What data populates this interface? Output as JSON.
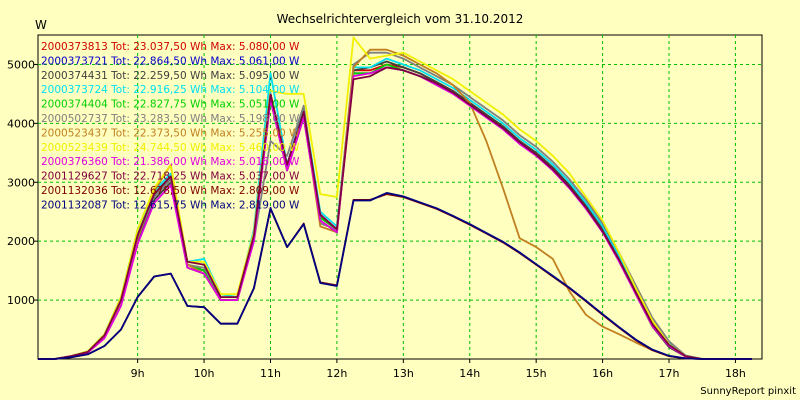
{
  "chart_data": {
    "type": "line",
    "title": "Wechselrichtervergleich vom 31.10.2012",
    "ylabel": "W",
    "footer": "SunnyReport pinxit",
    "x": [
      7.5,
      7.75,
      8.0,
      8.25,
      8.5,
      8.75,
      9.0,
      9.25,
      9.5,
      9.75,
      10.0,
      10.25,
      10.5,
      10.75,
      11.0,
      11.25,
      11.5,
      11.75,
      12.0,
      12.25,
      12.5,
      12.75,
      13.0,
      13.25,
      13.5,
      13.75,
      14.0,
      14.25,
      14.5,
      14.75,
      15.0,
      15.25,
      15.5,
      15.75,
      16.0,
      16.25,
      16.5,
      16.75,
      17.0,
      17.25,
      17.5,
      17.75,
      18.0,
      18.25
    ],
    "xlim": [
      7.5,
      18.4
    ],
    "ylim": [
      0,
      5500
    ],
    "xticks": [
      9,
      10,
      11,
      12,
      13,
      14,
      15,
      16,
      17,
      18
    ],
    "xtick_labels": [
      "9h",
      "10h",
      "11h",
      "12h",
      "13h",
      "14h",
      "15h",
      "16h",
      "17h",
      "18h"
    ],
    "yticks": [
      1000,
      2000,
      3000,
      4000,
      5000
    ],
    "ytick_labels": [
      "1000",
      "2000",
      "3000",
      "4000",
      "5000"
    ],
    "grid": true,
    "legend_position": "top-left",
    "series": [
      {
        "name": "2000373813",
        "legend": "2000373813 Tot: 23.037,50 Wh Max: 5.080,00 W",
        "color": "#d00000",
        "values": [
          0,
          0,
          50,
          120,
          400,
          1000,
          2100,
          2800,
          3100,
          1600,
          1500,
          1000,
          1000,
          2100,
          4500,
          3200,
          4200,
          2400,
          2200,
          4900,
          4900,
          5000,
          4950,
          4850,
          4700,
          4550,
          4350,
          4150,
          3950,
          3700,
          3500,
          3250,
          2950,
          2600,
          2200,
          1700,
          1150,
          600,
          250,
          50,
          0,
          0,
          0,
          0
        ]
      },
      {
        "name": "2000373721",
        "legend": "2000373721 Tot: 22.864,50 Wh Max: 5.061,00 W",
        "color": "#0000c8",
        "values": [
          0,
          0,
          50,
          120,
          400,
          1000,
          2100,
          2800,
          3100,
          1600,
          1500,
          1000,
          1000,
          2100,
          4500,
          3250,
          4150,
          2450,
          2200,
          4850,
          4850,
          4950,
          4900,
          4800,
          4680,
          4520,
          4320,
          4120,
          3920,
          3680,
          3470,
          3220,
          2920,
          2570,
          2170,
          1680,
          1130,
          590,
          240,
          50,
          0,
          0,
          0,
          0
        ]
      },
      {
        "name": "2000374431",
        "legend": "2000374431 Tot: 22.259,50 Wh Max: 5.095,00 W",
        "color": "#404040",
        "values": [
          0,
          0,
          50,
          120,
          400,
          950,
          2000,
          2700,
          3000,
          1550,
          1450,
          1000,
          1000,
          2050,
          4400,
          3200,
          4100,
          2350,
          2150,
          4900,
          4950,
          5050,
          4950,
          4850,
          4700,
          4550,
          4350,
          4150,
          3950,
          3700,
          3500,
          3250,
          2950,
          2600,
          2200,
          1700,
          1100,
          550,
          200,
          40,
          0,
          0,
          0,
          0
        ]
      },
      {
        "name": "2000373724",
        "legend": "2000373724 Tot: 22.916,25 Wh Max: 5.104,00 W",
        "color": "#00e0f0",
        "values": [
          0,
          0,
          50,
          130,
          420,
          1050,
          2200,
          2850,
          3150,
          1650,
          1700,
          1100,
          1050,
          2200,
          4850,
          3300,
          4250,
          2500,
          2250,
          4950,
          4950,
          5100,
          5000,
          4900,
          4750,
          4600,
          4400,
          4200,
          4000,
          3750,
          3550,
          3300,
          3000,
          2650,
          2250,
          1750,
          1200,
          650,
          280,
          60,
          0,
          0,
          0,
          0
        ]
      },
      {
        "name": "2000374404",
        "legend": "2000374404 Tot: 22.827,75 Wh Max: 5.051,00 W",
        "color": "#00d000",
        "values": [
          0,
          0,
          50,
          120,
          400,
          1000,
          2100,
          2800,
          3100,
          1600,
          1500,
          1000,
          1000,
          2100,
          4500,
          3200,
          4200,
          2400,
          2200,
          4850,
          4850,
          5000,
          4900,
          4800,
          4680,
          4520,
          4320,
          4120,
          3920,
          3680,
          3470,
          3220,
          2920,
          2570,
          2170,
          1680,
          1130,
          590,
          240,
          50,
          0,
          0,
          0,
          0
        ]
      },
      {
        "name": "2000502737",
        "legend": "2000502737 Tot: 23.283,50 Wh Max: 5.198,00 W",
        "color": "#808080",
        "values": [
          0,
          0,
          50,
          120,
          380,
          950,
          2050,
          2750,
          3050,
          1600,
          1550,
          1050,
          1050,
          2000,
          3700,
          3450,
          4300,
          2300,
          2200,
          5000,
          5200,
          5200,
          5100,
          4950,
          4800,
          4650,
          4450,
          4250,
          4050,
          3800,
          3600,
          3350,
          3050,
          2700,
          2300,
          1800,
          1250,
          700,
          300,
          60,
          0,
          0,
          0,
          0
        ]
      },
      {
        "name": "2000523437",
        "legend": "2000523437 Tot: 22.373,50 Wh Max: 5.255,00 W",
        "color": "#c08020",
        "values": [
          0,
          0,
          50,
          120,
          380,
          950,
          2050,
          2850,
          3300,
          1600,
          1450,
          1000,
          1000,
          2050,
          4450,
          3200,
          4150,
          2250,
          2150,
          4950,
          5250,
          5250,
          5150,
          5000,
          4850,
          4650,
          4350,
          3700,
          2900,
          2050,
          1900,
          1700,
          1150,
          750,
          550,
          420,
          280,
          150,
          50,
          10,
          0,
          0,
          0,
          0
        ]
      },
      {
        "name": "2000523439",
        "legend": "2000523439 Tot: 24.744,50 Wh Max: 5.460,00 W",
        "color": "#f0f000",
        "values": [
          0,
          0,
          50,
          130,
          420,
          1050,
          2200,
          2900,
          3300,
          1650,
          1650,
          1100,
          1100,
          2150,
          4550,
          4500,
          4500,
          2800,
          2750,
          5460,
          5100,
          5150,
          5200,
          5050,
          4900,
          4750,
          4550,
          4350,
          4150,
          3900,
          3700,
          3450,
          3150,
          2750,
          2350,
          1800,
          1200,
          650,
          250,
          50,
          0,
          0,
          0,
          0
        ]
      },
      {
        "name": "2000376360",
        "legend": "2000376360 Tot: 21.386,00 Wh Max: 5.016,00 W",
        "color": "#e000e0",
        "values": [
          0,
          0,
          50,
          110,
          350,
          900,
          1950,
          2650,
          2950,
          1550,
          1450,
          1000,
          1000,
          2000,
          4400,
          3200,
          4100,
          2350,
          2150,
          4800,
          4850,
          4950,
          4900,
          4800,
          4650,
          4500,
          4300,
          4100,
          3900,
          3650,
          3450,
          3200,
          2900,
          2550,
          2150,
          1650,
          1100,
          560,
          220,
          40,
          0,
          0,
          0,
          0
        ]
      },
      {
        "name": "2001129627",
        "legend": "2001129627 Tot: 22.718,25 Wh Max: 5.037,00 W",
        "color": "#800040",
        "values": [
          0,
          0,
          50,
          120,
          400,
          1000,
          2100,
          2800,
          3100,
          1650,
          1600,
          1050,
          1050,
          2100,
          4500,
          3300,
          4200,
          2450,
          2200,
          4750,
          4800,
          4950,
          4900,
          4800,
          4680,
          4520,
          4320,
          4120,
          3920,
          3680,
          3470,
          3220,
          2920,
          2570,
          2170,
          1680,
          1130,
          590,
          240,
          50,
          0,
          0,
          0,
          0
        ]
      },
      {
        "name": "2001132036",
        "legend": "2001132036 Tot: 12.678,50 Wh Max: 2.809,00 W",
        "color": "#800000",
        "values": [
          0,
          0,
          30,
          80,
          220,
          500,
          1050,
          1400,
          1450,
          900,
          880,
          600,
          600,
          1200,
          2550,
          1900,
          2300,
          1300,
          1250,
          2700,
          2700,
          2800,
          2750,
          2650,
          2550,
          2420,
          2280,
          2130,
          1980,
          1800,
          1600,
          1400,
          1200,
          980,
          750,
          530,
          320,
          150,
          50,
          10,
          0,
          0,
          0,
          0
        ]
      },
      {
        "name": "2001132087",
        "legend": "2001132087 Tot: 12.615,75 Wh Max: 2.819,00 W",
        "color": "#000080",
        "values": [
          0,
          0,
          30,
          80,
          220,
          500,
          1050,
          1400,
          1450,
          900,
          880,
          600,
          600,
          1200,
          2560,
          1900,
          2290,
          1290,
          1240,
          2690,
          2690,
          2819,
          2760,
          2660,
          2560,
          2430,
          2290,
          2140,
          1990,
          1810,
          1610,
          1410,
          1210,
          990,
          760,
          540,
          330,
          160,
          55,
          10,
          0,
          0,
          0,
          0
        ]
      }
    ]
  }
}
